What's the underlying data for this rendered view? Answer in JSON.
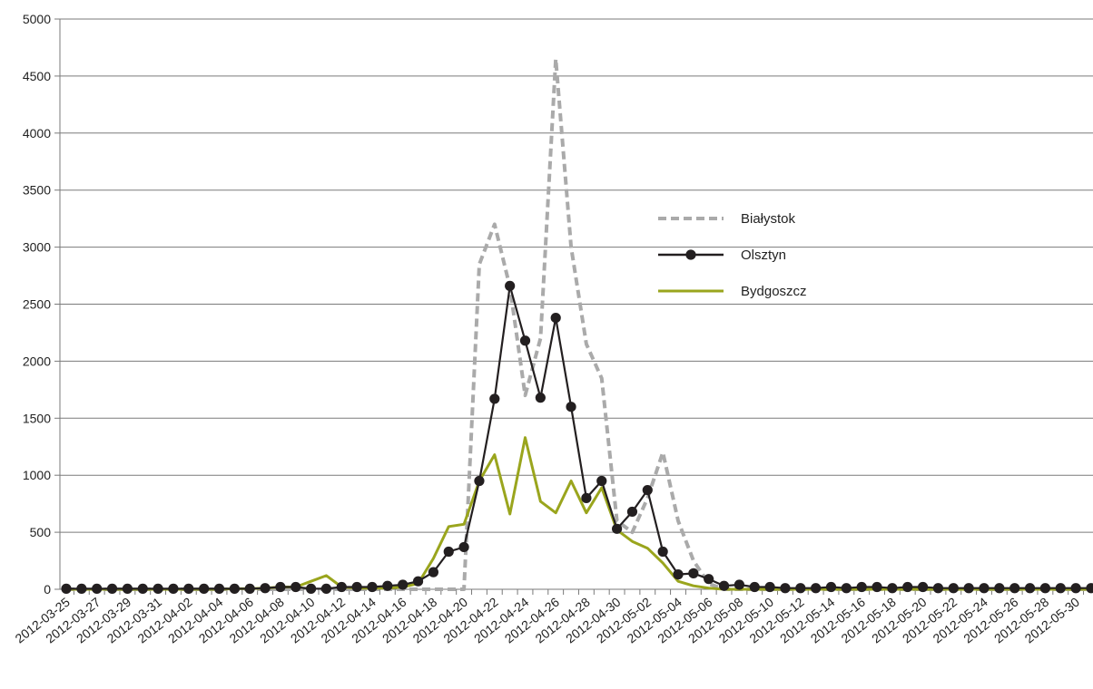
{
  "chart_data": {
    "type": "line",
    "title": "",
    "xlabel": "",
    "ylabel": "",
    "ylim": [
      0,
      5000
    ],
    "yticks": [
      0,
      500,
      1000,
      1500,
      2000,
      2500,
      3000,
      3500,
      4000,
      4500,
      5000
    ],
    "grid": true,
    "legend_position": "right-center",
    "x": [
      "2012-03-25",
      "2012-03-26",
      "2012-03-27",
      "2012-03-28",
      "2012-03-29",
      "2012-03-30",
      "2012-03-31",
      "2012-04-01",
      "2012-04-02",
      "2012-04-03",
      "2012-04-04",
      "2012-04-05",
      "2012-04-06",
      "2012-04-07",
      "2012-04-08",
      "2012-04-09",
      "2012-04-10",
      "2012-04-11",
      "2012-04-12",
      "2012-04-13",
      "2012-04-14",
      "2012-04-15",
      "2012-04-16",
      "2012-04-17",
      "2012-04-18",
      "2012-04-19",
      "2012-04-20",
      "2012-04-21",
      "2012-04-22",
      "2012-04-23",
      "2012-04-24",
      "2012-04-25",
      "2012-04-26",
      "2012-04-27",
      "2012-04-28",
      "2012-04-29",
      "2012-04-30",
      "2012-05-01",
      "2012-05-02",
      "2012-05-03",
      "2012-05-04",
      "2012-05-05",
      "2012-05-06",
      "2012-05-07",
      "2012-05-08",
      "2012-05-09",
      "2012-05-10",
      "2012-05-11",
      "2012-05-12",
      "2012-05-13",
      "2012-05-14",
      "2012-05-15",
      "2012-05-16",
      "2012-05-17",
      "2012-05-18",
      "2012-05-19",
      "2012-05-20",
      "2012-05-21",
      "2012-05-22",
      "2012-05-23",
      "2012-05-24",
      "2012-05-25",
      "2012-05-26",
      "2012-05-27",
      "2012-05-28",
      "2012-05-29",
      "2012-05-30",
      "2012-05-31"
    ],
    "x_tick_labels": [
      "2012-03-25",
      "2012-03-27",
      "2012-03-29",
      "2012-03-31",
      "2012-04-02",
      "2012-04-04",
      "2012-04-06",
      "2012-04-08",
      "2012-04-10",
      "2012-04-12",
      "2012-04-14",
      "2012-04-16",
      "2012-04-18",
      "2012-04-20",
      "2012-04-22",
      "2012-04-24",
      "2012-04-26",
      "2012-04-28",
      "2012-04-30",
      "2012-05-02",
      "2012-05-04",
      "2012-05-06",
      "2012-05-08",
      "2012-05-10",
      "2012-05-12",
      "2012-05-14",
      "2012-05-16",
      "2012-05-18",
      "2012-05-20",
      "2012-05-22",
      "2012-05-24",
      "2012-05-26",
      "2012-05-28",
      "2012-05-30"
    ],
    "series": [
      {
        "name": "Białystok",
        "color": "#aaaaaa",
        "style": "dashed",
        "values": [
          0,
          0,
          0,
          0,
          0,
          0,
          0,
          0,
          0,
          0,
          0,
          0,
          0,
          0,
          0,
          0,
          0,
          0,
          0,
          0,
          0,
          0,
          0,
          0,
          0,
          0,
          0,
          2850,
          3200,
          2650,
          1700,
          2200,
          4650,
          3000,
          2150,
          1850,
          600,
          500,
          800,
          1200,
          600,
          250,
          50,
          0,
          0,
          0,
          0,
          0,
          0,
          0,
          0,
          0,
          0,
          0,
          0,
          0,
          0,
          0,
          0,
          0,
          0,
          0,
          0,
          0,
          0,
          0,
          0,
          0
        ]
      },
      {
        "name": "Olsztyn",
        "color": "#231f20",
        "style": "solid-markers",
        "values": [
          5,
          5,
          5,
          5,
          5,
          5,
          5,
          5,
          5,
          5,
          5,
          5,
          5,
          10,
          20,
          20,
          5,
          5,
          20,
          20,
          20,
          30,
          40,
          70,
          150,
          330,
          370,
          950,
          1670,
          2660,
          2180,
          1680,
          2380,
          1600,
          800,
          950,
          530,
          680,
          870,
          330,
          130,
          140,
          90,
          30,
          40,
          20,
          20,
          10,
          10,
          10,
          20,
          10,
          20,
          20,
          10,
          20,
          20,
          10,
          10,
          10,
          10,
          10,
          10,
          10,
          10,
          10,
          10,
          10
        ]
      },
      {
        "name": "Bydgoszcz",
        "color": "#9aa51d",
        "style": "solid",
        "values": [
          0,
          0,
          0,
          0,
          0,
          0,
          0,
          0,
          0,
          0,
          0,
          5,
          5,
          10,
          20,
          20,
          70,
          120,
          20,
          10,
          10,
          10,
          20,
          50,
          270,
          550,
          570,
          950,
          1180,
          660,
          1330,
          770,
          670,
          950,
          670,
          890,
          520,
          420,
          360,
          230,
          70,
          30,
          10,
          0,
          0,
          0,
          0,
          0,
          0,
          0,
          0,
          0,
          0,
          0,
          0,
          0,
          0,
          0,
          0,
          0,
          0,
          0,
          0,
          0,
          0,
          0,
          0,
          0
        ]
      }
    ]
  }
}
